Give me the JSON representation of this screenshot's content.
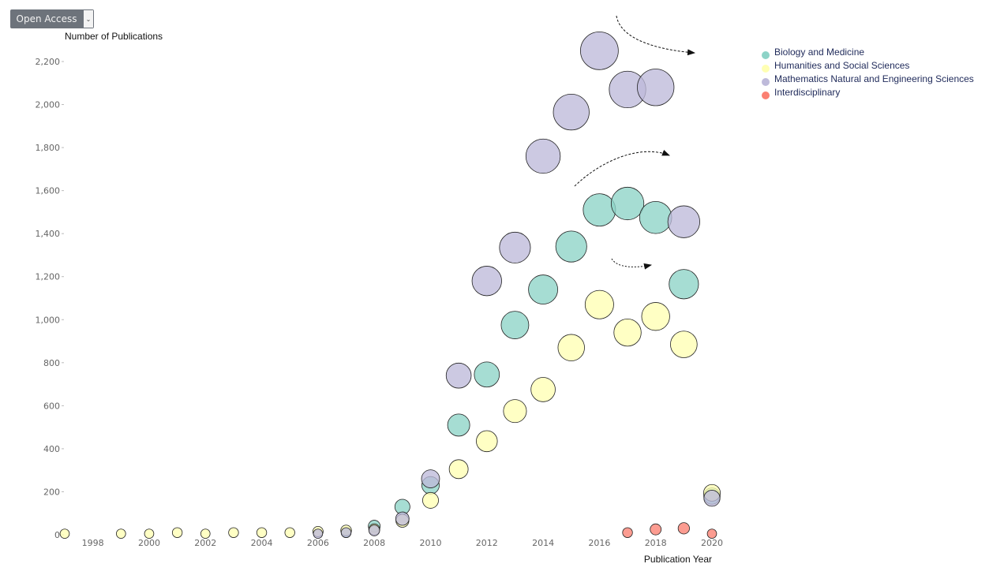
{
  "filter": {
    "selected": "Open Access"
  },
  "chart_data": {
    "type": "scatter",
    "xlabel": "Publication Year",
    "ylabel": "Number of Publications",
    "xlim": [
      1997,
      2020
    ],
    "ylim": [
      0,
      2300
    ],
    "x_ticks": [
      1998,
      2000,
      2002,
      2004,
      2006,
      2008,
      2010,
      2012,
      2014,
      2016,
      2018,
      2020
    ],
    "y_ticks": [
      0,
      200,
      400,
      600,
      800,
      1000,
      1200,
      1400,
      1600,
      1800,
      2000,
      2200
    ],
    "legend_position": "top-right",
    "series": [
      {
        "name": "Biology and Medicine",
        "color": "#8dd3c7",
        "points": [
          {
            "x": 2007,
            "y": 10
          },
          {
            "x": 2008,
            "y": 40
          },
          {
            "x": 2009,
            "y": 130
          },
          {
            "x": 2010,
            "y": 230
          },
          {
            "x": 2011,
            "y": 510
          },
          {
            "x": 2012,
            "y": 745
          },
          {
            "x": 2013,
            "y": 975
          },
          {
            "x": 2014,
            "y": 1140
          },
          {
            "x": 2015,
            "y": 1340
          },
          {
            "x": 2016,
            "y": 1510
          },
          {
            "x": 2017,
            "y": 1540
          },
          {
            "x": 2018,
            "y": 1475
          },
          {
            "x": 2019,
            "y": 1165
          },
          {
            "x": 2020,
            "y": 180
          }
        ]
      },
      {
        "name": "Humanities and Social Sciences",
        "color": "#ffffb3",
        "points": [
          {
            "x": 1997,
            "y": 5
          },
          {
            "x": 1999,
            "y": 5
          },
          {
            "x": 2000,
            "y": 5
          },
          {
            "x": 2001,
            "y": 10
          },
          {
            "x": 2002,
            "y": 5
          },
          {
            "x": 2003,
            "y": 10
          },
          {
            "x": 2004,
            "y": 10
          },
          {
            "x": 2005,
            "y": 10
          },
          {
            "x": 2006,
            "y": 15
          },
          {
            "x": 2007,
            "y": 20
          },
          {
            "x": 2008,
            "y": 25
          },
          {
            "x": 2009,
            "y": 65
          },
          {
            "x": 2010,
            "y": 160
          },
          {
            "x": 2011,
            "y": 305
          },
          {
            "x": 2012,
            "y": 435
          },
          {
            "x": 2013,
            "y": 575
          },
          {
            "x": 2014,
            "y": 675
          },
          {
            "x": 2015,
            "y": 870
          },
          {
            "x": 2016,
            "y": 1070
          },
          {
            "x": 2017,
            "y": 940
          },
          {
            "x": 2018,
            "y": 1015
          },
          {
            "x": 2019,
            "y": 885
          },
          {
            "x": 2020,
            "y": 195
          }
        ]
      },
      {
        "name": "Mathematics Natural and Engineering Sciences",
        "color": "#bebada",
        "points": [
          {
            "x": 2006,
            "y": 5
          },
          {
            "x": 2007,
            "y": 10
          },
          {
            "x": 2008,
            "y": 20
          },
          {
            "x": 2009,
            "y": 75
          },
          {
            "x": 2010,
            "y": 260
          },
          {
            "x": 2011,
            "y": 740
          },
          {
            "x": 2012,
            "y": 1180
          },
          {
            "x": 2013,
            "y": 1335
          },
          {
            "x": 2014,
            "y": 1760
          },
          {
            "x": 2015,
            "y": 1965
          },
          {
            "x": 2016,
            "y": 2250
          },
          {
            "x": 2017,
            "y": 2070
          },
          {
            "x": 2018,
            "y": 2080
          },
          {
            "x": 2019,
            "y": 1455
          },
          {
            "x": 2020,
            "y": 170
          }
        ]
      },
      {
        "name": "Interdisciplinary",
        "color": "#fb8072",
        "points": [
          {
            "x": 2017,
            "y": 10
          },
          {
            "x": 2018,
            "y": 25
          },
          {
            "x": 2019,
            "y": 30
          },
          {
            "x": 2020,
            "y": 5
          }
        ]
      }
    ]
  }
}
